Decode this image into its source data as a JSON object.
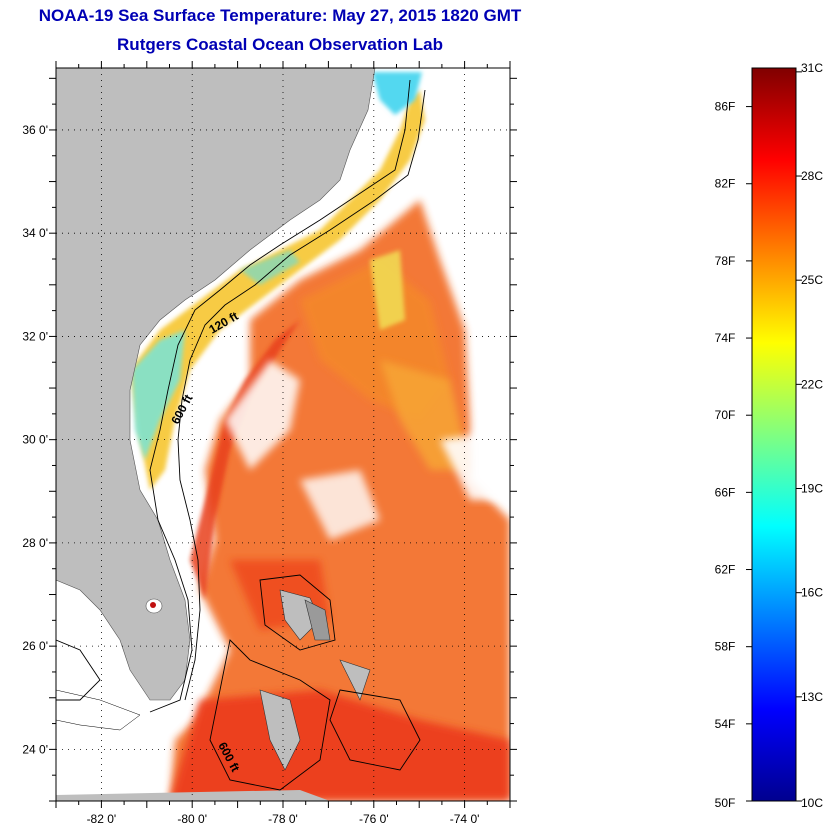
{
  "header": {
    "title": "NOAA-19 Sea Surface Temperature:  May 27, 2015 1820 GMT",
    "subtitle": "Rutgers Coastal Ocean Observation Lab"
  },
  "map": {
    "lat_ticks": [
      {
        "lat": 36,
        "label": "36 0'"
      },
      {
        "lat": 34,
        "label": "34 0'"
      },
      {
        "lat": 32,
        "label": "32 0'"
      },
      {
        "lat": 30,
        "label": "30 0'"
      },
      {
        "lat": 28,
        "label": "28 0'"
      },
      {
        "lat": 26,
        "label": "26 0'"
      },
      {
        "lat": 24,
        "label": "24 0'"
      }
    ],
    "lon_ticks": [
      {
        "lon": -82,
        "label": "-82 0'"
      },
      {
        "lon": -80,
        "label": "-80 0'"
      },
      {
        "lon": -78,
        "label": "-78 0'"
      },
      {
        "lon": -76,
        "label": "-76 0'"
      },
      {
        "lon": -74,
        "label": "-74 0'"
      }
    ],
    "lat_range": [
      23,
      37.2
    ],
    "lon_range": [
      -83,
      -73
    ],
    "contours": [
      {
        "label": "120 ft"
      },
      {
        "label": "600 ft"
      },
      {
        "label": "600 ft"
      }
    ],
    "colors": {
      "land": "#bebebe",
      "no_data": "#ffffff",
      "grid": "#000000"
    }
  },
  "colorbar": {
    "range_f": [
      50,
      88
    ],
    "fahrenheit_labels": [
      "86F",
      "82F",
      "78F",
      "74F",
      "70F",
      "66F",
      "62F",
      "58F",
      "54F",
      "50F"
    ],
    "fahrenheit_values": [
      86,
      82,
      78,
      74,
      70,
      66,
      62,
      58,
      54,
      50
    ],
    "celsius_labels": [
      "31C",
      "28C",
      "25C",
      "22C",
      "19C",
      "16C",
      "13C",
      "10C"
    ],
    "celsius_values": [
      31,
      28,
      25,
      22,
      19,
      16,
      13,
      10
    ],
    "colormap": [
      "#00008f",
      "#0000ff",
      "#0080ff",
      "#00ffff",
      "#80ff80",
      "#ffff00",
      "#ff8000",
      "#ff0000",
      "#800000"
    ]
  }
}
